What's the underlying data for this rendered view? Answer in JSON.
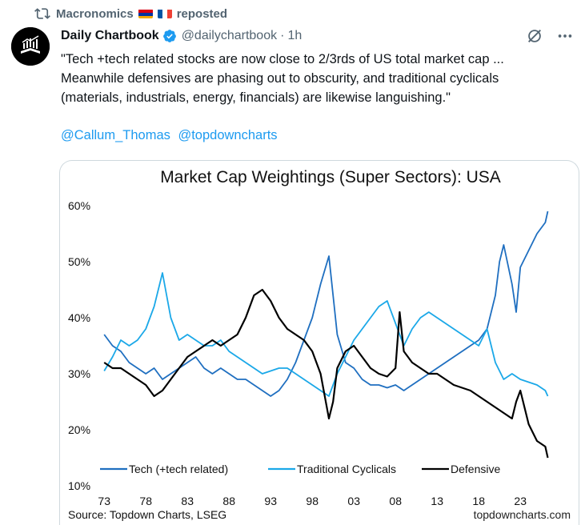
{
  "repost": {
    "user": "Macronomics",
    "action": "reposted"
  },
  "post": {
    "author_name": "Daily Chartbook",
    "handle": "@dailychartbook",
    "separator": "·",
    "time": "1h",
    "text_line1": "\"Tech +tech related stocks are now close to 2/3rds of US total market cap ...",
    "text_line2": "Meanwhile defensives are phasing out to obscurity, and traditional cyclicals",
    "text_line3": "(materials, industrials, energy, financials) are likewise languishing.\"",
    "mentions": [
      "@Callum_Thomas",
      "@topdowncharts"
    ]
  },
  "icons": [
    "repost-icon",
    "flag-armenia-icon",
    "flag-france-icon",
    "verified-badge-icon",
    "grok-icon",
    "more-icon"
  ],
  "colors": {
    "accent": "#1d9bf0",
    "tech": "#1f6fc0",
    "cyclicals": "#1ba8e8",
    "defensive": "#000000"
  },
  "chart_data": {
    "type": "line",
    "title": "Market Cap Weightings (Super Sectors): USA",
    "source": "Source: Topdown Charts, LSEG",
    "watermark": "topdowncharts.com",
    "xlim": [
      1972.5,
      2027.5
    ],
    "ylim": [
      10,
      60
    ],
    "x_ticks": [
      1973,
      1978,
      1983,
      1988,
      1993,
      1998,
      2003,
      2008,
      2013,
      2018,
      2023
    ],
    "x_tick_labels": [
      "73",
      "78",
      "83",
      "88",
      "93",
      "98",
      "03",
      "08",
      "13",
      "18",
      "23"
    ],
    "y_ticks": [
      10,
      20,
      30,
      40,
      50,
      60
    ],
    "y_tick_labels": [
      "10%",
      "20%",
      "30%",
      "40%",
      "50%",
      "60%"
    ],
    "legend_position": "bottom",
    "series": [
      {
        "name": "Tech (+tech related)",
        "color": "#1f6fc0",
        "x": [
          1973,
          1974,
          1975,
          1976,
          1977,
          1978,
          1979,
          1980,
          1981,
          1982,
          1983,
          1984,
          1985,
          1986,
          1987,
          1988,
          1989,
          1990,
          1991,
          1992,
          1993,
          1994,
          1995,
          1996,
          1997,
          1998,
          1999,
          2000,
          2000.5,
          2001,
          2002,
          2003,
          2004,
          2005,
          2006,
          2007,
          2008,
          2009,
          2010,
          2011,
          2012,
          2013,
          2014,
          2015,
          2016,
          2017,
          2018,
          2019,
          2020,
          2020.5,
          2021,
          2022,
          2022.5,
          2023,
          2024,
          2025,
          2026,
          2026.3
        ],
        "values": [
          37,
          35,
          34,
          32,
          31,
          30,
          31,
          29,
          30,
          31,
          32,
          33,
          31,
          30,
          31,
          30,
          29,
          29,
          28,
          27,
          26,
          27,
          29,
          32,
          36,
          40,
          46,
          51,
          44,
          37,
          32,
          31,
          29,
          28,
          28,
          27.5,
          28,
          27,
          28,
          29,
          30,
          31,
          32,
          33,
          34,
          35,
          36,
          38,
          44,
          50,
          53,
          46,
          41,
          49,
          52,
          55,
          57,
          59
        ]
      },
      {
        "name": "Traditional Cyclicals",
        "color": "#1ba8e8",
        "x": [
          1973,
          1974,
          1975,
          1976,
          1977,
          1978,
          1979,
          1980,
          1980.5,
          1981,
          1982,
          1983,
          1984,
          1985,
          1986,
          1987,
          1988,
          1989,
          1990,
          1991,
          1992,
          1993,
          1994,
          1995,
          1996,
          1997,
          1998,
          1999,
          2000,
          2001,
          2002,
          2003,
          2004,
          2005,
          2006,
          2007,
          2008,
          2009,
          2010,
          2011,
          2012,
          2013,
          2014,
          2015,
          2016,
          2017,
          2018,
          2019,
          2020,
          2021,
          2022,
          2023,
          2024,
          2025,
          2026,
          2026.3
        ],
        "values": [
          30.5,
          33,
          36,
          35,
          36,
          38,
          42,
          48,
          44,
          40,
          36,
          37,
          36,
          35,
          35,
          36,
          34,
          33,
          32,
          31,
          30,
          30.5,
          31,
          31,
          30,
          29,
          28,
          27,
          26,
          30,
          33,
          36,
          38,
          40,
          42,
          43,
          39,
          35,
          38,
          40,
          41,
          40,
          39,
          38,
          37,
          36,
          35,
          38,
          32,
          29,
          30,
          29,
          28.5,
          28,
          27,
          26
        ]
      },
      {
        "name": "Defensive",
        "color": "#000000",
        "x": [
          1973,
          1974,
          1975,
          1976,
          1977,
          1978,
          1979,
          1980,
          1981,
          1982,
          1983,
          1984,
          1985,
          1986,
          1987,
          1988,
          1989,
          1990,
          1991,
          1992,
          1993,
          1994,
          1995,
          1996,
          1997,
          1998,
          1999,
          2000,
          2000.5,
          2001,
          2002,
          2003,
          2004,
          2005,
          2006,
          2007,
          2008,
          2008.5,
          2009,
          2010,
          2011,
          2012,
          2013,
          2014,
          2015,
          2016,
          2017,
          2018,
          2019,
          2020,
          2021,
          2022,
          2022.5,
          2023,
          2024,
          2025,
          2026,
          2026.3
        ],
        "values": [
          32,
          31,
          31,
          30,
          29,
          28,
          26,
          27,
          29,
          31,
          33,
          34,
          35,
          36,
          35,
          36,
          37,
          40,
          44,
          45,
          43,
          40,
          38,
          37,
          36,
          34,
          30,
          22,
          25,
          31,
          34,
          35,
          33,
          31,
          30,
          29.5,
          31,
          41,
          34,
          32,
          31,
          30,
          30,
          29,
          28,
          27.5,
          27,
          26,
          25,
          24,
          23,
          22,
          25,
          27,
          21,
          18,
          17,
          15
        ]
      }
    ]
  }
}
